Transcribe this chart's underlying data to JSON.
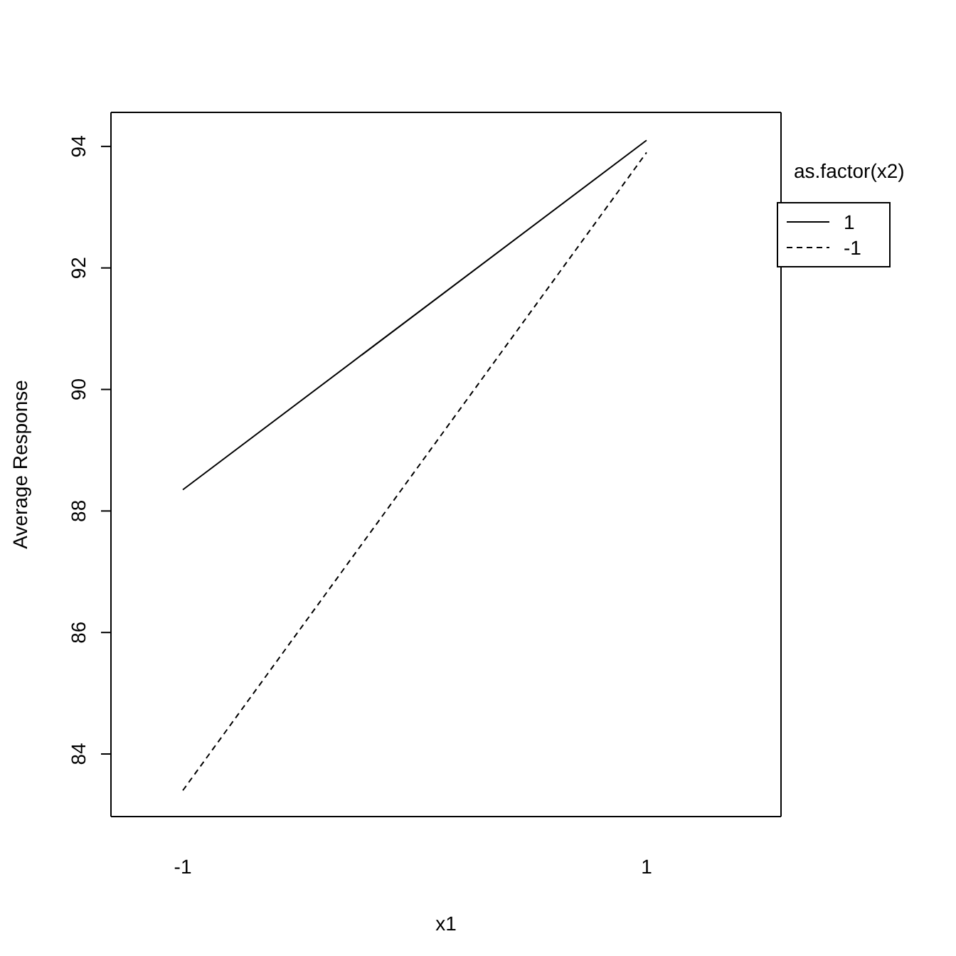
{
  "chart_data": {
    "type": "line",
    "xlabel": "x1",
    "ylabel": "Average Response",
    "legend_title": "as.factor(x2)",
    "categories": [
      "-1",
      "1"
    ],
    "series": [
      {
        "name": "1",
        "color": "#000000",
        "line_style": "solid",
        "values": [
          88.35,
          94.1
        ]
      },
      {
        "name": "-1",
        "color": "#000000",
        "line_style": "dashed",
        "values": [
          83.4,
          93.9
        ]
      }
    ],
    "ylim": [
      82.97,
      94.56
    ],
    "yticks": [
      84,
      86,
      88,
      90,
      92,
      94
    ],
    "grid": false,
    "legend": "top right",
    "marker": "none"
  }
}
